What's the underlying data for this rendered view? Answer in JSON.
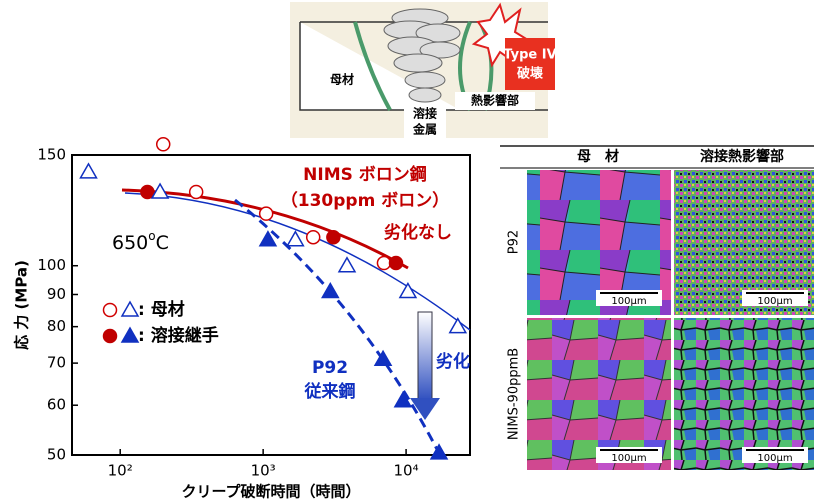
{
  "diagram": {
    "base_metal": "母材",
    "weld_metal": [
      "溶接",
      "金属"
    ],
    "haz": "熱影響部",
    "failure": [
      "Type IV",
      "破壊"
    ]
  },
  "chart_data": {
    "type": "scatter",
    "x_label": "クリープ破断時間（時間）",
    "y_label": "応 力 (MPa)",
    "xlim": [
      46,
      28000
    ],
    "xticks": [
      {
        "value": 100,
        "label": "10²"
      },
      {
        "value": 1000,
        "label": "10³"
      },
      {
        "value": 10000,
        "label": "10⁴"
      }
    ],
    "ylim": [
      50,
      150
    ],
    "yticks": [
      150,
      100,
      90,
      80,
      70,
      60,
      50
    ],
    "log_x": true,
    "log_y": true,
    "series": [
      {
        "marker": "circle",
        "filled": false,
        "color": "#d00000",
        "x": [
          200,
          340,
          1050,
          2240,
          7000
        ],
        "values": [
          156,
          131,
          121,
          111,
          101
        ]
      },
      {
        "marker": "circle",
        "filled": true,
        "color": "#c00000",
        "x": [
          155,
          3100,
          8500
        ],
        "values": [
          131,
          111,
          101
        ]
      },
      {
        "marker": "triangle",
        "filled": false,
        "color": "#1030c0",
        "x": [
          60,
          190,
          1680,
          3860,
          10300,
          23000
        ],
        "values": [
          141,
          131,
          110,
          100,
          91,
          80
        ]
      },
      {
        "marker": "triangle",
        "filled": true,
        "color": "#1030c0",
        "x": [
          1080,
          2950,
          6900,
          9500,
          17000
        ],
        "values": [
          110,
          91,
          71,
          61,
          50.4
        ]
      }
    ],
    "legend": [
      ": 母材",
      ": 溶接継手"
    ],
    "annotations": {
      "nims": [
        "NIMS ボロン鋼",
        "（130ppm ボロン）",
        "劣化なし"
      ],
      "temperature": [
        "650",
        "o",
        "C"
      ],
      "p92": [
        "P92",
        "従来鋼"
      ],
      "degradation": "劣化"
    }
  },
  "micrograph": {
    "columns": [
      "母　材",
      "溶接熱影響部"
    ],
    "rows": [
      "P92",
      "NIMS-90ppmB"
    ],
    "scale_bar": "100μm"
  }
}
